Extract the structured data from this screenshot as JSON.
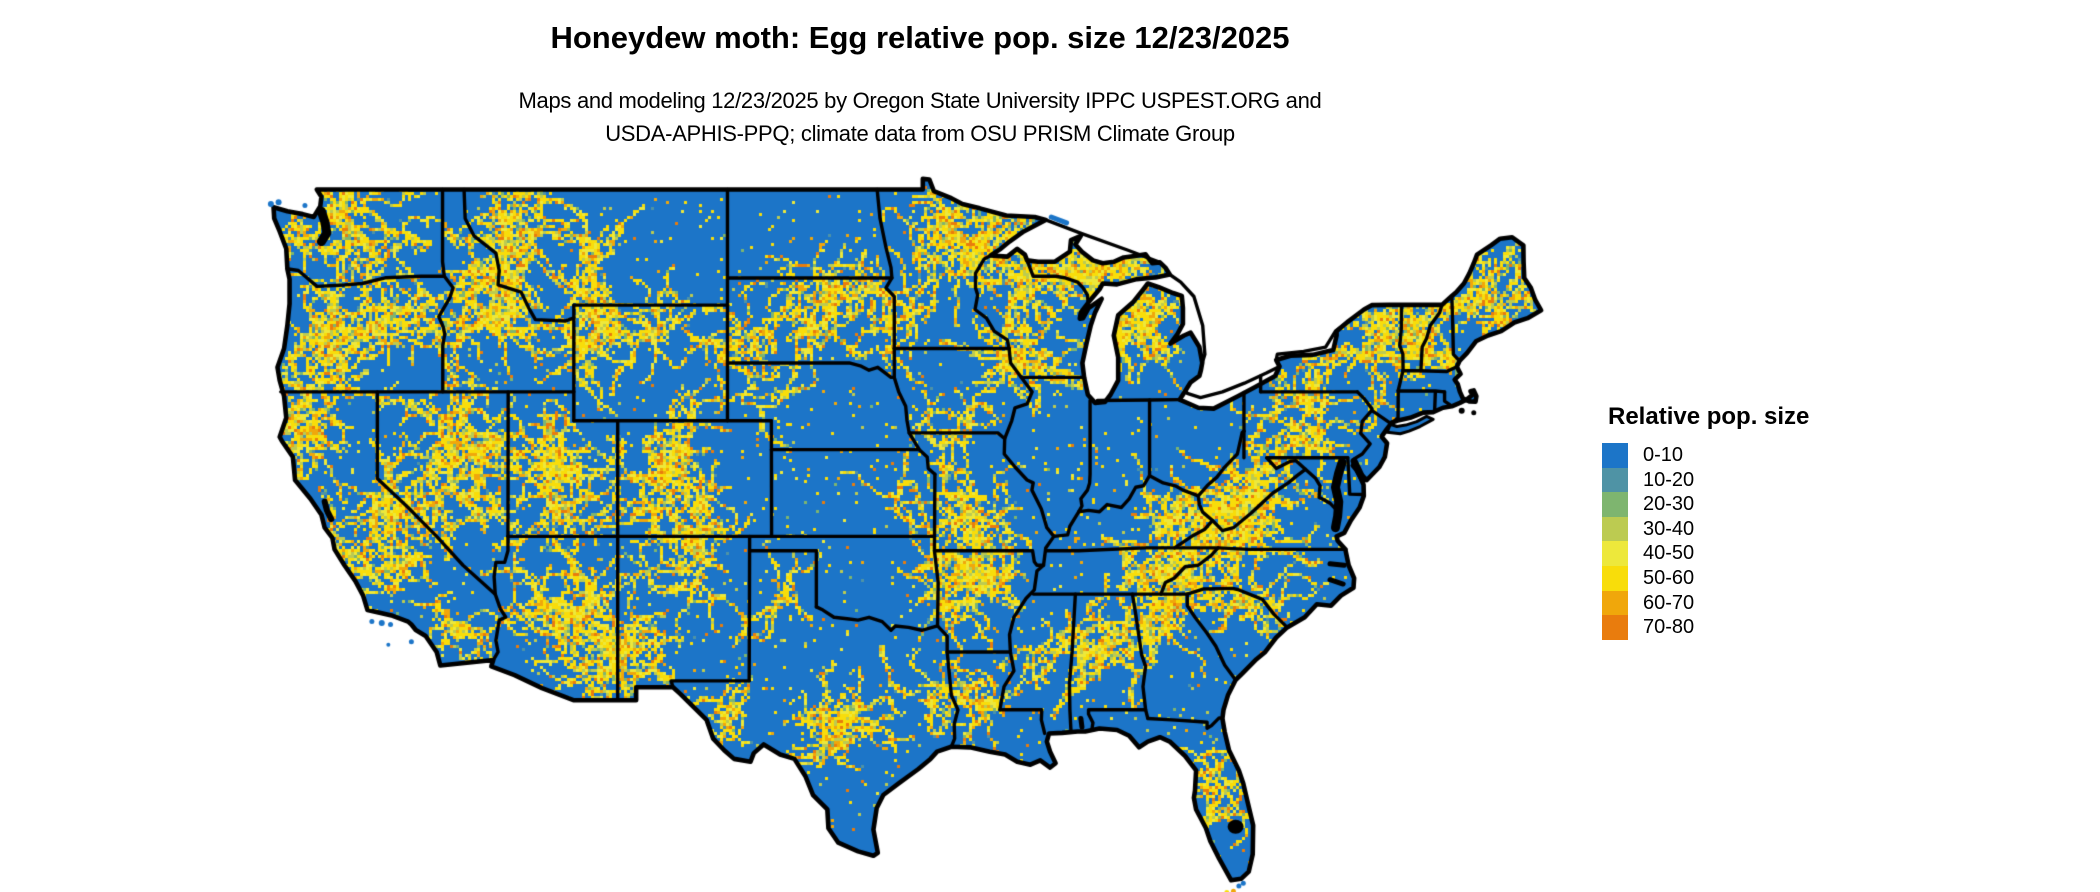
{
  "title": "Honeydew moth: Egg relative pop. size 12/23/2025",
  "subtitle_line1": "Maps and modeling 12/23/2025 by Oregon State University IPPC USPEST.ORG and",
  "subtitle_line2": "USDA-APHIS-PPQ; climate data from OSU PRISM Climate Group",
  "legend": {
    "title": "Relative pop. size",
    "items": [
      {
        "label": "0-10",
        "color": "#1C75C8"
      },
      {
        "label": "10-20",
        "color": "#4F93A5"
      },
      {
        "label": "20-30",
        "color": "#7EB56F"
      },
      {
        "label": "30-40",
        "color": "#BCCB51"
      },
      {
        "label": "40-50",
        "color": "#EDE83B"
      },
      {
        "label": "50-60",
        "color": "#F8DD0A"
      },
      {
        "label": "60-70",
        "color": "#F0A70B"
      },
      {
        "label": "70-80",
        "color": "#E97C0D"
      }
    ]
  },
  "map": {
    "land_color": "#1C75C8",
    "border_color": "#000000",
    "water_color": "#FFFFFF"
  }
}
